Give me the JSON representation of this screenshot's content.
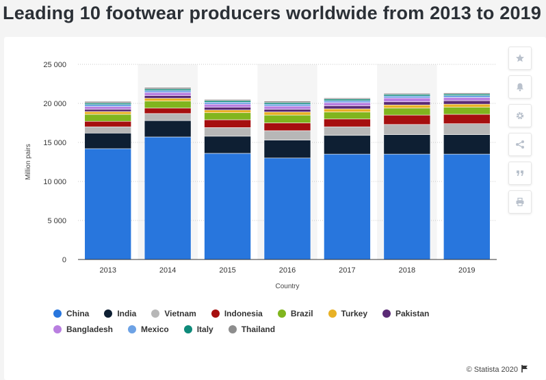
{
  "page": {
    "title": "Leading 10 footwear producers worldwide from 2013 to 2019"
  },
  "toolbar": [
    {
      "name": "favorite-button",
      "icon": "star-icon"
    },
    {
      "name": "notification-button",
      "icon": "bell-icon"
    },
    {
      "name": "settings-button",
      "icon": "gear-icon"
    },
    {
      "name": "share-button",
      "icon": "share-icon"
    },
    {
      "name": "cite-button",
      "icon": "quote-icon"
    },
    {
      "name": "print-button",
      "icon": "print-icon"
    }
  ],
  "credit": {
    "text": "© Statista 2020",
    "flag_icon": "flag-icon"
  },
  "chart_data": {
    "type": "bar",
    "stacked": true,
    "title": "",
    "xlabel": "Country",
    "ylabel": "Million pairs",
    "ylim": [
      0,
      25000
    ],
    "yticks": [
      0,
      5000,
      10000,
      15000,
      20000,
      25000
    ],
    "ytick_labels": [
      "0",
      "5 000",
      "10 000",
      "15 000",
      "20 000",
      "25 000"
    ],
    "grid": true,
    "legend_position": "bottom-left",
    "categories": [
      "2013",
      "2014",
      "2015",
      "2016",
      "2017",
      "2018",
      "2019"
    ],
    "series": [
      {
        "name": "China",
        "color": "#2876dd",
        "values": [
          14200,
          15700,
          13600,
          13000,
          13500,
          13500,
          13500
        ]
      },
      {
        "name": "India",
        "color": "#0e1f33",
        "values": [
          2000,
          2100,
          2200,
          2300,
          2400,
          2500,
          2500
        ]
      },
      {
        "name": "Vietnam",
        "color": "#b7b7b7",
        "values": [
          800,
          900,
          1100,
          1200,
          1100,
          1300,
          1400
        ]
      },
      {
        "name": "Indonesia",
        "color": "#a60f0f",
        "values": [
          700,
          700,
          1000,
          1000,
          1000,
          1200,
          1200
        ]
      },
      {
        "name": "Brazil",
        "color": "#80b51e",
        "values": [
          900,
          900,
          900,
          1000,
          900,
          900,
          900
        ]
      },
      {
        "name": "Turkey",
        "color": "#e8b125",
        "values": [
          350,
          350,
          350,
          400,
          400,
          400,
          400
        ]
      },
      {
        "name": "Pakistan",
        "color": "#5a2a75",
        "values": [
          300,
          350,
          350,
          350,
          400,
          400,
          450
        ]
      },
      {
        "name": "Bangladesh",
        "color": "#b97fe0",
        "values": [
          350,
          400,
          400,
          400,
          400,
          500,
          400
        ]
      },
      {
        "name": "Mexico",
        "color": "#6da2e5",
        "values": [
          250,
          250,
          250,
          250,
          250,
          250,
          250
        ]
      },
      {
        "name": "Italy",
        "color": "#0e8a7a",
        "values": [
          200,
          200,
          200,
          200,
          200,
          200,
          200
        ]
      },
      {
        "name": "Thailand",
        "color": "#8d8d8d",
        "values": [
          200,
          200,
          150,
          200,
          150,
          150,
          150
        ]
      }
    ]
  }
}
